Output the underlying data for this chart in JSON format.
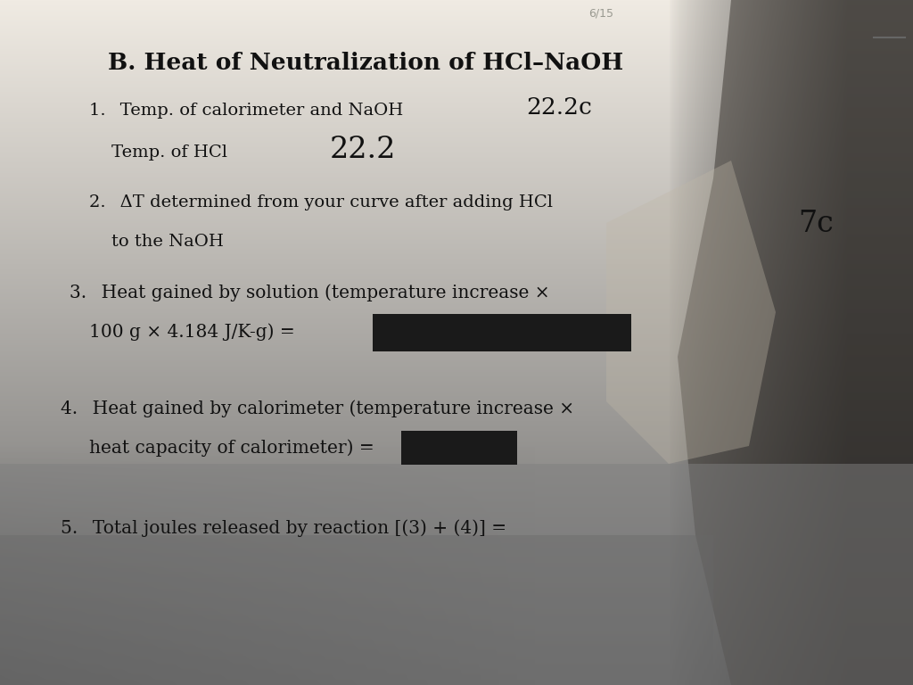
{
  "title": "B. Heat of Neutralization of HCl–NaOH",
  "bg_top": "#f0ebe3",
  "bg_mid": "#ddd8d0",
  "bg_bottom": "#7a7a7a",
  "shadow_color": "#555050",
  "text_color": "#111111",
  "redacted_color": "#1a1a1a",
  "line1_label": "1.  Temp. of calorimeter and NaOH",
  "line1_value": "22.2c",
  "line2_label": "Temp. of HCl",
  "line2_value": "22.2",
  "line3_label": "2.  ΔT determined from your curve after adding HCl",
  "line3b_label": "to the NaOH",
  "line3_value": "7c",
  "line4_label": "3.  Heat gained by solution (temperature increase ×",
  "line4b_label": "100 g × 4.184 J/K-g) =",
  "line5_label": "4.  Heat gained by calorimeter (temperature increase ×",
  "line5b_label": "heat capacity of calorimeter) =",
  "line6_label": "5.  Total joules released by reaction [(3) + (4)] =",
  "figsize": [
    10.24,
    7.68
  ],
  "dpi": 100
}
